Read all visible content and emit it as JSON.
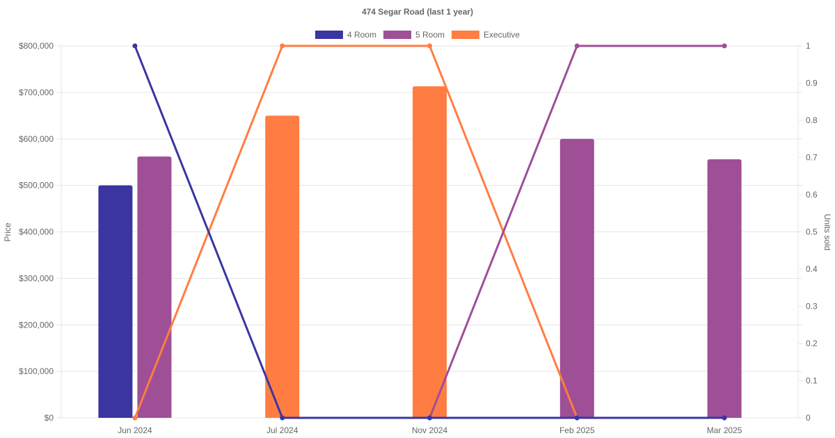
{
  "chart_data": {
    "type": "bar",
    "title": "474 Segar Road (last 1 year)",
    "categories": [
      "Jun 2024",
      "Jul 2024",
      "Nov 2024",
      "Feb 2025",
      "Mar 2025"
    ],
    "y_left": {
      "label": "Price",
      "min": 0,
      "max": 800000,
      "ticks": [
        0,
        100000,
        200000,
        300000,
        400000,
        500000,
        600000,
        700000,
        800000
      ],
      "tick_labels": [
        "$0",
        "$100,000",
        "$200,000",
        "$300,000",
        "$400,000",
        "$500,000",
        "$600,000",
        "$700,000",
        "$800,000"
      ]
    },
    "y_right": {
      "label": "Units sold",
      "min": 0,
      "max": 1,
      "ticks": [
        0,
        0.1,
        0.2,
        0.3,
        0.4,
        0.5,
        0.6,
        0.7,
        0.8,
        0.9,
        1
      ],
      "tick_labels": [
        "0",
        "0.1",
        "0.2",
        "0.3",
        "0.4",
        "0.5",
        "0.6",
        "0.7",
        "0.8",
        "0.9",
        "1"
      ]
    },
    "grid": true,
    "legend_position": "top",
    "series": [
      {
        "name": "4 Room",
        "color": "#3a35a0",
        "price": [
          500000,
          null,
          null,
          null,
          null
        ],
        "units_sold": [
          1,
          0,
          0,
          0,
          0
        ]
      },
      {
        "name": "5 Room",
        "color": "#9e4f96",
        "price": [
          562000,
          null,
          null,
          600000,
          556000
        ],
        "units_sold": [
          null,
          null,
          0,
          1,
          1
        ]
      },
      {
        "name": "Executive",
        "color": "#ff7d42",
        "price": [
          null,
          650000,
          713000,
          null,
          null
        ],
        "units_sold": [
          0,
          1,
          1,
          0,
          null
        ]
      }
    ]
  }
}
